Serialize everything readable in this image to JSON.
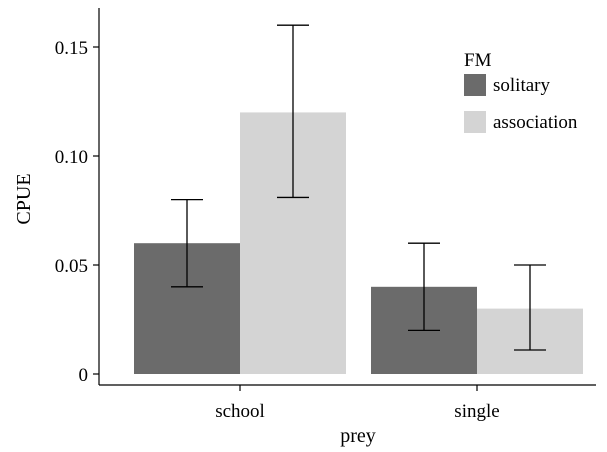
{
  "chart_data": {
    "type": "bar",
    "title": "",
    "xlabel": "prey",
    "ylabel": "CPUE",
    "categories": [
      "school",
      "single"
    ],
    "ylim": [
      0,
      0.165
    ],
    "yticks": [
      0,
      0.05,
      0.1,
      0.15
    ],
    "ytick_labels": [
      "0",
      "0.05",
      "0.10",
      "0.15"
    ],
    "grid": false,
    "legend": {
      "title": "FM",
      "position": "top-right"
    },
    "series": [
      {
        "name": "solitary",
        "color": "#6b6b6b",
        "values": [
          0.06,
          0.04
        ],
        "err_low": [
          0.04,
          0.02
        ],
        "err_high": [
          0.08,
          0.06
        ]
      },
      {
        "name": "association",
        "color": "#d4d4d4",
        "values": [
          0.12,
          0.03
        ],
        "err_low": [
          0.081,
          0.011
        ],
        "err_high": [
          0.16,
          0.05
        ]
      }
    ]
  }
}
